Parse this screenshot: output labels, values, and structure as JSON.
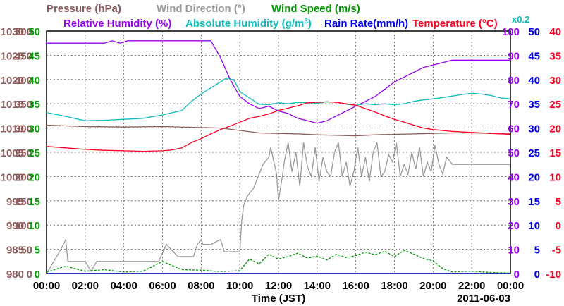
{
  "chart_data": {
    "type": "line",
    "date_label": "2011-06-03",
    "xlabel": "Time (JST)",
    "x_ticks": [
      "00:00",
      "02:00",
      "04:00",
      "06:00",
      "08:00",
      "10:00",
      "12:00",
      "14:00",
      "16:00",
      "18:00",
      "20:00",
      "22:00",
      "00:00"
    ],
    "xlim_hours": [
      0,
      24
    ],
    "legend": [
      {
        "label": "Pressure (hPa)",
        "color": "#8b5a5a"
      },
      {
        "label": "Wind Direction (°)",
        "color": "#999999"
      },
      {
        "label": "Wind Speed (m/s)",
        "color": "#009900"
      },
      {
        "label": "Relative Humidity (%)",
        "color": "#9900ee"
      },
      {
        "label": "Absolute Humidity (g/m",
        "sup": "3",
        "tail": ")",
        "color": "#11bbbb"
      },
      {
        "label": "Rain Rate(mm/h)",
        "color": "#0000ee"
      },
      {
        "label": "Temperature (°C)",
        "color": "#ff0022"
      }
    ],
    "axes": {
      "pressure": {
        "color": "#8b5a5a",
        "side": "left",
        "ticks": [
          980,
          985,
          990,
          995,
          1000,
          1005,
          1010,
          1015,
          1020,
          1025,
          1030
        ],
        "ylim": [
          980,
          1030
        ]
      },
      "direction": {
        "color": "#8b5a5a",
        "side": "left",
        "ticks": [
          0,
          50,
          100,
          150,
          200,
          250,
          300,
          350,
          400,
          450,
          500
        ],
        "ylim": [
          0,
          500
        ]
      },
      "speed": {
        "color": "#009900",
        "side": "left",
        "ticks": [
          0,
          5,
          10,
          15,
          20,
          25,
          30,
          35,
          40,
          45,
          50
        ],
        "ylim": [
          0,
          50
        ]
      },
      "humidity": {
        "color": "#9900ee",
        "side": "right",
        "ticks": [
          0,
          10,
          20,
          30,
          40,
          50,
          60,
          70,
          80,
          90,
          100
        ],
        "ylim": [
          0,
          100
        ]
      },
      "rain": {
        "color": "#0000ee",
        "side": "right",
        "ticks": [
          0,
          5,
          10,
          15,
          20,
          25,
          30,
          35,
          40,
          45,
          50
        ],
        "ylim": [
          0,
          50
        ],
        "note": "x0.2"
      },
      "temperature": {
        "color": "#ff0022",
        "side": "right",
        "ticks": [
          -10,
          -5,
          0,
          5,
          10,
          15,
          20,
          25,
          30,
          35,
          40
        ],
        "ylim": [
          -10,
          40
        ]
      }
    },
    "grid": true,
    "series": [
      {
        "name": "Pressure (hPa)",
        "color": "#8b5a5a",
        "axis": "pressure",
        "x": [
          0,
          2,
          4,
          6,
          8,
          9,
          10,
          11,
          12,
          13,
          14,
          15,
          16,
          17,
          18,
          19,
          20,
          21,
          22,
          23,
          24
        ],
        "y": [
          1010.6,
          1010.3,
          1010.2,
          1010.3,
          1010.1,
          1010.0,
          1009.5,
          1009.0,
          1008.9,
          1008.8,
          1008.6,
          1008.5,
          1008.4,
          1008.6,
          1008.7,
          1008.8,
          1008.9,
          1009.0,
          1009.0,
          1008.9,
          1008.8
        ]
      },
      {
        "name": "Wind Direction (°)",
        "color": "#999999",
        "axis": "direction",
        "x": [
          0,
          0.7,
          1.0,
          1.1,
          2.0,
          2.3,
          2.6,
          5.8,
          6.2,
          6.8,
          7.6,
          7.8,
          8.0,
          8.1,
          8.5,
          9.0,
          9.2,
          10.0,
          10.1,
          10.2,
          10.4,
          10.7,
          11.0,
          11.2,
          11.5,
          11.6,
          11.9,
          12.0,
          12.2,
          12.3,
          12.5,
          12.7,
          12.9,
          13.1,
          13.3,
          13.5,
          13.7,
          13.9,
          14.1,
          14.3,
          14.5,
          14.7,
          14.9,
          15.1,
          15.3,
          15.5,
          15.7,
          15.9,
          16.1,
          16.3,
          16.5,
          16.7,
          16.9,
          17.1,
          17.3,
          17.5,
          17.7,
          17.9,
          18.1,
          18.3,
          18.5,
          18.7,
          18.9,
          19.1,
          19.3,
          19.5,
          19.7,
          19.9,
          20.1,
          20.3,
          20.5,
          20.7,
          21.0,
          24
        ],
        "y": [
          0,
          47,
          70,
          25,
          25,
          5,
          25,
          25,
          60,
          35,
          35,
          60,
          70,
          60,
          60,
          70,
          45,
          45,
          110,
          140,
          160,
          175,
          205,
          225,
          240,
          260,
          205,
          150,
          200,
          230,
          270,
          210,
          250,
          180,
          270,
          220,
          200,
          260,
          190,
          240,
          210,
          200,
          250,
          270,
          200,
          230,
          180,
          210,
          260,
          200,
          240,
          190,
          250,
          270,
          200,
          210,
          245,
          230,
          270,
          200,
          225,
          205,
          250,
          215,
          260,
          200,
          230,
          210,
          265,
          225,
          205,
          240,
          225,
          225
        ]
      },
      {
        "name": "Wind Speed (m/s)",
        "color": "#009900",
        "axis": "speed",
        "dash": "3,2",
        "x": [
          0,
          1,
          2,
          3,
          4,
          5,
          6,
          7,
          8,
          9,
          10,
          10.5,
          11,
          11.5,
          12,
          12.5,
          13,
          13.5,
          14,
          14.5,
          15,
          15.5,
          16,
          16.5,
          17,
          17.5,
          18,
          18.5,
          19,
          19.5,
          20,
          20.5,
          21,
          22,
          23,
          24
        ],
        "y": [
          0.3,
          1.5,
          0.5,
          0.8,
          0.3,
          0.5,
          2.5,
          0.8,
          0.7,
          0.4,
          0.6,
          3,
          2,
          4,
          3,
          3.5,
          4.2,
          3.2,
          3.6,
          2.8,
          4.0,
          3.3,
          3.7,
          4.4,
          3.9,
          4.6,
          3.5,
          4.8,
          4.0,
          3.1,
          2.6,
          1.0,
          0.3,
          0.5,
          0.2,
          0.1
        ]
      },
      {
        "name": "Relative Humidity (%)",
        "color": "#9900ee",
        "axis": "humidity",
        "x": [
          0,
          3,
          3.4,
          3.8,
          4.2,
          8.5,
          9.0,
          9.5,
          10.0,
          10.5,
          11.0,
          11.5,
          12.0,
          12.5,
          13.0,
          13.5,
          14.0,
          14.5,
          15.0,
          15.5,
          16.0,
          16.5,
          17.0,
          17.5,
          18.0,
          18.5,
          19.0,
          19.5,
          20.0,
          20.5,
          21.0,
          24
        ],
        "y": [
          95,
          95,
          96,
          95,
          96,
          96,
          89,
          80,
          73,
          70,
          68,
          69,
          67,
          66,
          64,
          63,
          62,
          63,
          65,
          67,
          69,
          71,
          73,
          76,
          79,
          81,
          83,
          85,
          86,
          87,
          88,
          88
        ]
      },
      {
        "name": "Absolute Humidity (g/m³)",
        "color": "#11bbbb",
        "axis": "speed",
        "x": [
          0,
          1,
          2,
          3,
          4,
          5,
          6,
          7,
          7.5,
          8,
          8.5,
          9,
          9.3,
          9.7,
          10,
          10.5,
          11,
          11.5,
          12,
          12.5,
          13,
          13.5,
          14,
          14.5,
          15,
          15.5,
          16,
          16.5,
          17,
          17.5,
          18,
          18.5,
          19,
          19.5,
          20,
          20.5,
          21,
          21.5,
          22,
          22.5,
          23,
          23.5,
          24
        ],
        "y": [
          33.2,
          32.4,
          31.5,
          31.6,
          31.8,
          32.0,
          32.7,
          33.6,
          35.5,
          37.0,
          38.3,
          39.5,
          40.3,
          39.9,
          37.5,
          36.2,
          34.9,
          34.8,
          35.2,
          35.0,
          35.3,
          35.2,
          35.1,
          35.4,
          35.3,
          34.9,
          34.7,
          35.0,
          34.8,
          35.0,
          34.8,
          35.0,
          35.5,
          35.8,
          36.0,
          36.3,
          36.6,
          36.9,
          37.2,
          37.0,
          36.7,
          36.2,
          36.0
        ]
      },
      {
        "name": "Rain Rate(mm/h)",
        "color": "#0000ee",
        "axis": "rain",
        "x": [
          0,
          24
        ],
        "y": [
          0,
          0
        ]
      },
      {
        "name": "Temperature (°C)",
        "color": "#ff0022",
        "axis": "temperature",
        "x": [
          0,
          1,
          2,
          3,
          4,
          5,
          6,
          6.5,
          7,
          7.5,
          8,
          8.5,
          9,
          9.5,
          10,
          10.5,
          11,
          11.5,
          12,
          12.5,
          13,
          13.5,
          14,
          14.5,
          15,
          15.5,
          16,
          16.5,
          17,
          17.5,
          18,
          18.5,
          19,
          19.5,
          20,
          21,
          22,
          23,
          24
        ],
        "y": [
          16.2,
          15.9,
          15.6,
          15.4,
          15.3,
          15.2,
          15.3,
          15.5,
          15.9,
          17.0,
          17.8,
          18.8,
          19.7,
          20.4,
          21.2,
          22.0,
          22.4,
          22.9,
          23.6,
          24.1,
          24.6,
          25.2,
          25.3,
          25.4,
          25.3,
          25.0,
          24.7,
          24.0,
          23.3,
          22.5,
          21.8,
          21.2,
          20.6,
          20.0,
          19.7,
          19.3,
          19.1,
          18.9,
          18.7
        ]
      }
    ]
  }
}
